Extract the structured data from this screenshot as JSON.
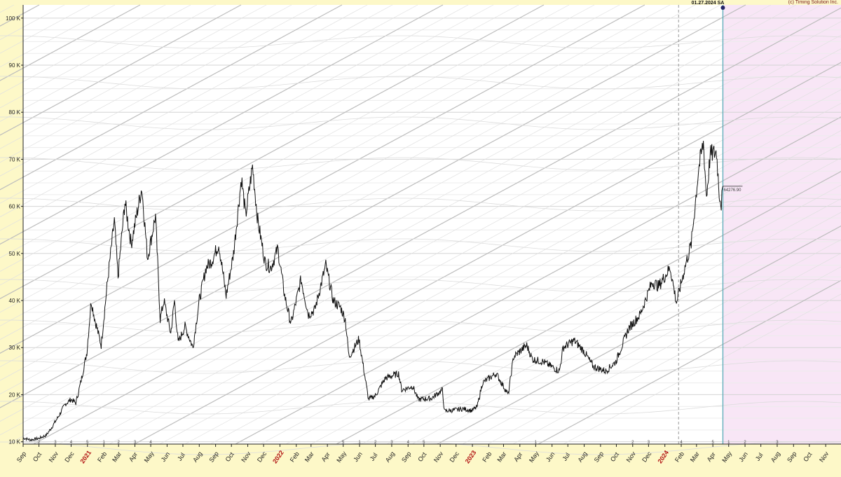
{
  "header": {
    "date_marker": "01.27.2024 SA",
    "copyright": "(c) Timing Solution Inc."
  },
  "colors": {
    "background": "#fdf8c8",
    "plot": "#ffffff",
    "forecast_zone": "#f8e6f6",
    "price_line": "#111111",
    "time_marker": "#5aaab8",
    "gann_line": "#c6c6c6"
  },
  "chart_data": {
    "type": "line",
    "title": "",
    "xlabel": "",
    "ylabel": "",
    "ylim": [
      9500,
      102800
    ],
    "xlim": [
      "2020-09-01",
      "2024-11-30"
    ],
    "grid": true,
    "last_value_label": "64276.90",
    "y_ticks": [
      {
        "value": 10000,
        "label": "10 K"
      },
      {
        "value": 20000,
        "label": "20 K"
      },
      {
        "value": 30000,
        "label": "30 K"
      },
      {
        "value": 40000,
        "label": "40 K"
      },
      {
        "value": 50000,
        "label": "50 K"
      },
      {
        "value": 60000,
        "label": "60 K"
      },
      {
        "value": 70000,
        "label": "70 K"
      },
      {
        "value": 80000,
        "label": "80 K"
      },
      {
        "value": 90000,
        "label": "90 K"
      },
      {
        "value": 100000,
        "label": "100 K"
      }
    ],
    "x_ticks": [
      {
        "date": "2020-09-01",
        "label": "Sep",
        "year": false
      },
      {
        "date": "2020-10-01",
        "label": "Oct",
        "year": false
      },
      {
        "date": "2020-11-01",
        "label": "Nov",
        "year": false
      },
      {
        "date": "2020-12-01",
        "label": "Dec",
        "year": false
      },
      {
        "date": "2021-01-01",
        "label": "2021",
        "year": true
      },
      {
        "date": "2021-02-01",
        "label": "Feb",
        "year": false
      },
      {
        "date": "2021-03-01",
        "label": "Mar",
        "year": false
      },
      {
        "date": "2021-04-01",
        "label": "Apr",
        "year": false
      },
      {
        "date": "2021-05-01",
        "label": "May",
        "year": false
      },
      {
        "date": "2021-06-01",
        "label": "Jun",
        "year": false
      },
      {
        "date": "2021-07-01",
        "label": "Jul",
        "year": false
      },
      {
        "date": "2021-08-01",
        "label": "Aug",
        "year": false
      },
      {
        "date": "2021-09-01",
        "label": "Sep",
        "year": false
      },
      {
        "date": "2021-10-01",
        "label": "Oct",
        "year": false
      },
      {
        "date": "2021-11-01",
        "label": "Nov",
        "year": false
      },
      {
        "date": "2021-12-01",
        "label": "Dec",
        "year": false
      },
      {
        "date": "2022-01-01",
        "label": "2022",
        "year": true
      },
      {
        "date": "2022-02-01",
        "label": "Feb",
        "year": false
      },
      {
        "date": "2022-03-01",
        "label": "Mar",
        "year": false
      },
      {
        "date": "2022-04-01",
        "label": "Apr",
        "year": false
      },
      {
        "date": "2022-05-01",
        "label": "May",
        "year": false
      },
      {
        "date": "2022-06-01",
        "label": "Jun",
        "year": false
      },
      {
        "date": "2022-07-01",
        "label": "Jul",
        "year": false
      },
      {
        "date": "2022-08-01",
        "label": "Aug",
        "year": false
      },
      {
        "date": "2022-09-01",
        "label": "Sep",
        "year": false
      },
      {
        "date": "2022-10-01",
        "label": "Oct",
        "year": false
      },
      {
        "date": "2022-11-01",
        "label": "Nov",
        "year": false
      },
      {
        "date": "2022-12-01",
        "label": "Dec",
        "year": false
      },
      {
        "date": "2023-01-01",
        "label": "2023",
        "year": true
      },
      {
        "date": "2023-02-01",
        "label": "Feb",
        "year": false
      },
      {
        "date": "2023-03-01",
        "label": "Mar",
        "year": false
      },
      {
        "date": "2023-04-01",
        "label": "Apr",
        "year": false
      },
      {
        "date": "2023-05-01",
        "label": "May",
        "year": false
      },
      {
        "date": "2023-06-01",
        "label": "Jun",
        "year": false
      },
      {
        "date": "2023-07-01",
        "label": "Jul",
        "year": false
      },
      {
        "date": "2023-08-01",
        "label": "Aug",
        "year": false
      },
      {
        "date": "2023-09-01",
        "label": "Sep",
        "year": false
      },
      {
        "date": "2023-10-01",
        "label": "Oct",
        "year": false
      },
      {
        "date": "2023-11-01",
        "label": "Nov",
        "year": false
      },
      {
        "date": "2023-12-01",
        "label": "Dec",
        "year": false
      },
      {
        "date": "2024-01-01",
        "label": "2024",
        "year": true
      },
      {
        "date": "2024-02-01",
        "label": "Feb",
        "year": false
      },
      {
        "date": "2024-03-01",
        "label": "Mar",
        "year": false
      },
      {
        "date": "2024-04-01",
        "label": "Apr",
        "year": false
      },
      {
        "date": "2024-05-01",
        "label": "May",
        "year": false
      },
      {
        "date": "2024-06-01",
        "label": "Jun",
        "year": false
      },
      {
        "date": "2024-07-01",
        "label": "Jul",
        "year": false
      },
      {
        "date": "2024-08-01",
        "label": "Aug",
        "year": false
      },
      {
        "date": "2024-09-01",
        "label": "Sep",
        "year": false
      },
      {
        "date": "2024-10-01",
        "label": "Oct",
        "year": false
      },
      {
        "date": "2024-11-01",
        "label": "Nov",
        "year": false
      }
    ],
    "bottom_markers": [
      {
        "date": "2020-10-01",
        "label": "2"
      },
      {
        "date": "2020-11-01",
        "label": "3"
      },
      {
        "date": "2020-12-01",
        "label": "4"
      },
      {
        "date": "2021-01-01",
        "label": "5"
      },
      {
        "date": "2021-02-01",
        "label": "1"
      },
      {
        "date": "2021-03-01",
        "label": "2"
      },
      {
        "date": "2021-04-01",
        "label": "3"
      },
      {
        "date": "2021-05-01",
        "label": "4"
      },
      {
        "date": "2022-05-01",
        "label": "5"
      },
      {
        "date": "2022-06-01",
        "label": "1"
      },
      {
        "date": "2022-07-01",
        "label": "2"
      },
      {
        "date": "2022-08-01",
        "label": "3"
      },
      {
        "date": "2022-09-01",
        "label": "4"
      },
      {
        "date": "2022-10-01",
        "label": "5"
      },
      {
        "date": "2023-05-01",
        "label": "1"
      },
      {
        "date": "2023-11-01",
        "label": "2"
      },
      {
        "date": "2023-12-01",
        "label": "3"
      },
      {
        "date": "2024-02-01",
        "label": "4"
      },
      {
        "date": "2024-04-01",
        "label": "5"
      },
      {
        "date": "2024-05-01",
        "label": "1"
      },
      {
        "date": "2024-06-01",
        "label": "2"
      },
      {
        "date": "2024-08-01",
        "label": "3"
      }
    ],
    "vertical_markers": [
      {
        "date": "2024-01-27",
        "style": "dashed"
      },
      {
        "date": "2024-04-20",
        "style": "solid"
      }
    ],
    "series": [
      {
        "values": [
          [
            "2020-09-01",
            10800
          ],
          [
            "2020-09-15",
            10400
          ],
          [
            "2020-10-01",
            10700
          ],
          [
            "2020-10-15",
            11400
          ],
          [
            "2020-10-25",
            13000
          ],
          [
            "2020-11-05",
            15000
          ],
          [
            "2020-11-20",
            18000
          ],
          [
            "2020-12-01",
            19000
          ],
          [
            "2020-12-10",
            18200
          ],
          [
            "2020-12-20",
            23000
          ],
          [
            "2020-12-31",
            29000
          ],
          [
            "2021-01-08",
            40000
          ],
          [
            "2021-01-15",
            36000
          ],
          [
            "2021-01-27",
            30500
          ],
          [
            "2021-02-08",
            44000
          ],
          [
            "2021-02-21",
            57000
          ],
          [
            "2021-02-28",
            45000
          ],
          [
            "2021-03-13",
            61000
          ],
          [
            "2021-03-25",
            52000
          ],
          [
            "2021-04-14",
            64000
          ],
          [
            "2021-04-25",
            49000
          ],
          [
            "2021-05-10",
            58000
          ],
          [
            "2021-05-19",
            36000
          ],
          [
            "2021-05-26",
            40000
          ],
          [
            "2021-06-08",
            33000
          ],
          [
            "2021-06-15",
            40000
          ],
          [
            "2021-06-22",
            31000
          ],
          [
            "2021-07-05",
            34500
          ],
          [
            "2021-07-20",
            30000
          ],
          [
            "2021-08-01",
            40000
          ],
          [
            "2021-08-14",
            47000
          ],
          [
            "2021-08-25",
            48500
          ],
          [
            "2021-09-07",
            52000
          ],
          [
            "2021-09-21",
            41000
          ],
          [
            "2021-10-05",
            50000
          ],
          [
            "2021-10-20",
            66000
          ],
          [
            "2021-10-28",
            58000
          ],
          [
            "2021-11-10",
            68500
          ],
          [
            "2021-11-20",
            57000
          ],
          [
            "2021-12-04",
            48000
          ],
          [
            "2021-12-15",
            47000
          ],
          [
            "2021-12-28",
            51000
          ],
          [
            "2022-01-10",
            41000
          ],
          [
            "2022-01-22",
            35000
          ],
          [
            "2022-02-10",
            44500
          ],
          [
            "2022-02-24",
            37000
          ],
          [
            "2022-03-08",
            38000
          ],
          [
            "2022-03-29",
            47500
          ],
          [
            "2022-04-12",
            40000
          ],
          [
            "2022-04-26",
            38500
          ],
          [
            "2022-05-05",
            36000
          ],
          [
            "2022-05-12",
            28000
          ],
          [
            "2022-05-31",
            31800
          ],
          [
            "2022-06-13",
            22500
          ],
          [
            "2022-06-18",
            19000
          ],
          [
            "2022-07-01",
            19800
          ],
          [
            "2022-07-20",
            23500
          ],
          [
            "2022-08-14",
            24500
          ],
          [
            "2022-08-20",
            21000
          ],
          [
            "2022-09-10",
            21800
          ],
          [
            "2022-09-20",
            19000
          ],
          [
            "2022-10-15",
            19200
          ],
          [
            "2022-11-05",
            21000
          ],
          [
            "2022-11-09",
            16500
          ],
          [
            "2022-11-25",
            16700
          ],
          [
            "2022-12-15",
            17000
          ],
          [
            "2022-12-31",
            16600
          ],
          [
            "2023-01-10",
            17400
          ],
          [
            "2023-01-20",
            22500
          ],
          [
            "2023-02-15",
            24500
          ],
          [
            "2023-03-10",
            20000
          ],
          [
            "2023-03-20",
            28000
          ],
          [
            "2023-04-14",
            30500
          ],
          [
            "2023-04-25",
            27500
          ],
          [
            "2023-05-15",
            27000
          ],
          [
            "2023-06-15",
            25000
          ],
          [
            "2023-06-22",
            30000
          ],
          [
            "2023-07-13",
            31500
          ],
          [
            "2023-07-31",
            29300
          ],
          [
            "2023-08-18",
            26000
          ],
          [
            "2023-09-11",
            25000
          ],
          [
            "2023-09-30",
            27000
          ],
          [
            "2023-10-24",
            34000
          ],
          [
            "2023-11-15",
            37000
          ],
          [
            "2023-12-08",
            44000
          ],
          [
            "2023-12-20",
            43000
          ],
          [
            "2024-01-11",
            47000
          ],
          [
            "2024-01-23",
            39500
          ],
          [
            "2024-02-09",
            47500
          ],
          [
            "2024-02-20",
            52000
          ],
          [
            "2024-02-28",
            61000
          ],
          [
            "2024-03-05",
            68000
          ],
          [
            "2024-03-14",
            73500
          ],
          [
            "2024-03-20",
            62000
          ],
          [
            "2024-03-27",
            71000
          ],
          [
            "2024-04-08",
            71500
          ],
          [
            "2024-04-13",
            63000
          ],
          [
            "2024-04-17",
            60500
          ],
          [
            "2024-04-20",
            64276.9
          ]
        ]
      }
    ]
  }
}
